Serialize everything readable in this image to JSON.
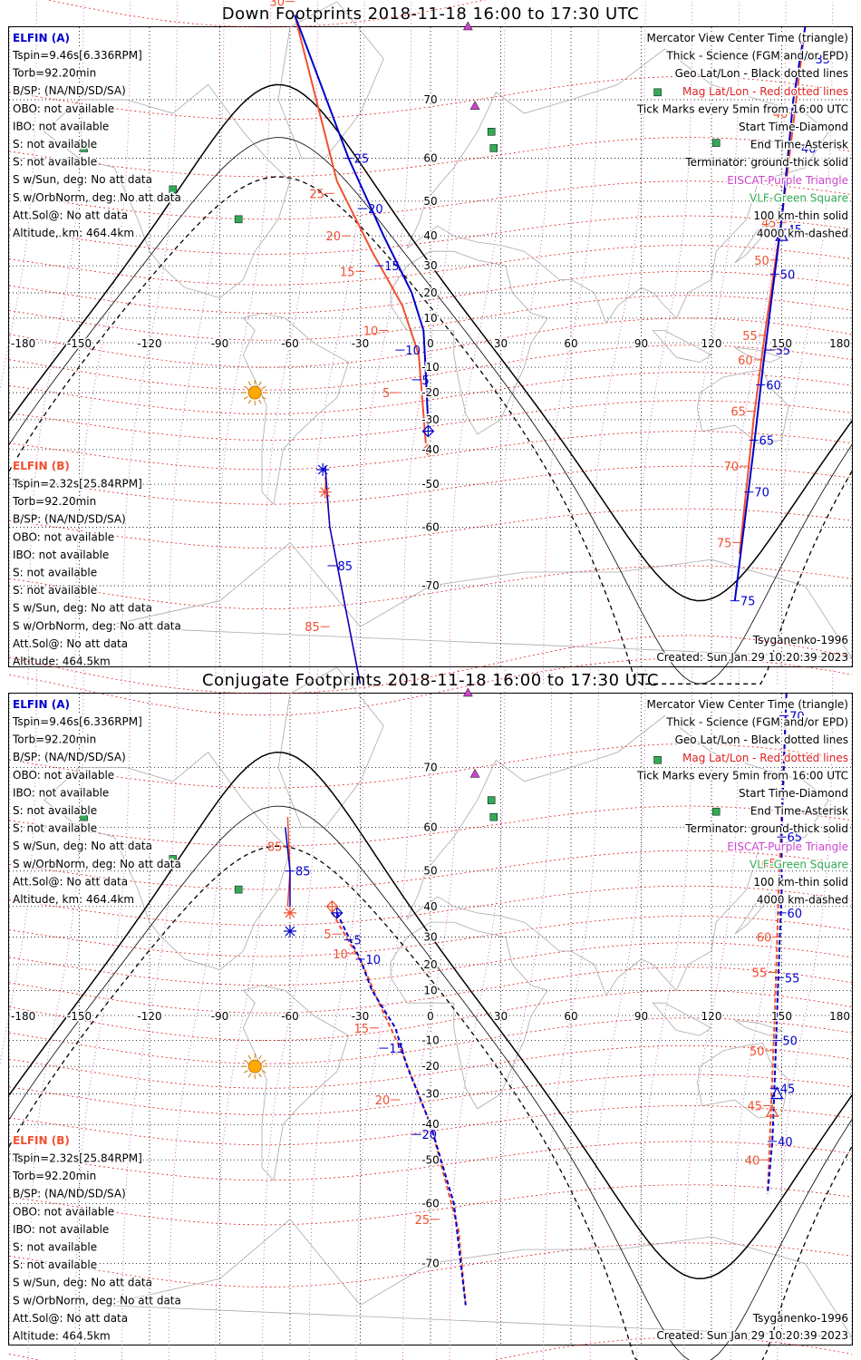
{
  "panels": [
    {
      "id": "down",
      "title": "Down Footprints 2018-11-18 16:00 to 17:30 UTC",
      "info_a": {
        "header": "ELFIN (A)",
        "lines": [
          "Tspin=9.46s[6.336RPM]",
          "Torb=92.20min",
          "B/SP: (NA/ND/SD/SA)",
          "OBO: not available",
          "IBO: not available",
          "S: not available",
          "S: not available",
          "S w/Sun, deg: No att data",
          "S w/OrbNorm, deg: No att data",
          "Att.Sol@: No att data",
          "Altitude, km: 464.4km"
        ]
      },
      "info_b": {
        "header": "ELFIN (B)",
        "lines": [
          "Tspin=2.32s[25.84RPM]",
          "Torb=92.20min",
          "B/SP: (NA/ND/SD/SA)",
          "OBO: not available",
          "IBO: not available",
          "S: not available",
          "S: not available",
          "S w/Sun, deg: No att data",
          "S w/OrbNorm, deg: No att data",
          "Att.Sol@: No att data",
          "Altitude: 464.5km"
        ]
      },
      "track_a_blue": {
        "points": [
          [
            -58,
            79
          ],
          [
            -35,
            60
          ],
          [
            -20,
            40
          ],
          [
            -8,
            20
          ],
          [
            -3,
            5
          ],
          [
            -2,
            -12
          ],
          [
            -1,
            -32
          ]
        ],
        "ticks": [
          {
            "lon": -35,
            "lat": 60,
            "label": "25"
          },
          {
            "lon": -29,
            "lat": 48,
            "label": "20"
          },
          {
            "lon": -22,
            "lat": 30,
            "label": "15"
          },
          {
            "lon": -13,
            "lat": -3,
            "label": "10"
          },
          {
            "lon": -6,
            "lat": -15,
            "label": "5"
          }
        ]
      },
      "track_a_red": {
        "points": [
          [
            -58,
            79
          ],
          [
            -40,
            55
          ],
          [
            -25,
            35
          ],
          [
            -12,
            15
          ],
          [
            -5,
            -5
          ],
          [
            -2,
            -38
          ]
        ],
        "ticks": [
          {
            "lon": -60,
            "lat": 80,
            "label": "30"
          },
          {
            "lon": -43,
            "lat": 52,
            "label": "25"
          },
          {
            "lon": -36,
            "lat": 40,
            "label": "20"
          },
          {
            "lon": -30,
            "lat": 28,
            "label": "15"
          },
          {
            "lon": -20,
            "lat": 5,
            "label": "10"
          },
          {
            "lon": -15,
            "lat": -20,
            "label": "5"
          }
        ]
      },
      "track_b_blue": {
        "points": [
          [
            -45,
            -45
          ],
          [
            -43,
            -60
          ],
          [
            -30,
            -80
          ]
        ],
        "ticks": [
          {
            "lon": -42,
            "lat": -67,
            "label": "85"
          }
        ]
      },
      "track_b_red": {
        "points": [
          [
            -45,
            -48
          ],
          [
            -43,
            -60
          ],
          [
            -30,
            -80
          ]
        ],
        "ticks": [
          {
            "lon": -45,
            "lat": -75,
            "label": "85"
          }
        ]
      },
      "track_a2_blue": {
        "points": [
          [
            160,
            78
          ],
          [
            155,
            70
          ],
          [
            150,
            45
          ],
          [
            146,
            20
          ],
          [
            142,
            -10
          ],
          [
            138,
            -40
          ],
          [
            130,
            -72
          ]
        ],
        "ticks": [
          {
            "lon": 162,
            "lat": 75,
            "label": "35"
          },
          {
            "lon": 156,
            "lat": 62,
            "label": "40"
          },
          {
            "lon": 150,
            "lat": 42,
            "label": "45"
          },
          {
            "lon": 147,
            "lat": 27,
            "label": "50"
          },
          {
            "lon": 145,
            "lat": -3,
            "label": "55"
          },
          {
            "lon": 141,
            "lat": -17,
            "label": "60"
          },
          {
            "lon": 138,
            "lat": -37,
            "label": "65"
          },
          {
            "lon": 136,
            "lat": -52,
            "label": "70"
          },
          {
            "lon": 130,
            "lat": -72,
            "label": "75"
          }
        ]
      },
      "track_a2_red": {
        "points": [
          [
            160,
            78
          ],
          [
            150,
            45
          ],
          [
            143,
            5
          ],
          [
            138,
            -30
          ],
          [
            132,
            -65
          ]
        ],
        "ticks": [
          {
            "lon": 155,
            "lat": 68,
            "label": "40"
          },
          {
            "lon": 150,
            "lat": 44,
            "label": "45"
          },
          {
            "lon": 147,
            "lat": 32,
            "label": "50"
          },
          {
            "lon": 142,
            "lat": 3,
            "label": "55"
          },
          {
            "lon": 140,
            "lat": -7,
            "label": "60"
          },
          {
            "lon": 137,
            "lat": -27,
            "label": "65"
          },
          {
            "lon": 134,
            "lat": -45,
            "label": "70"
          },
          {
            "lon": 131,
            "lat": -63,
            "label": "75"
          }
        ]
      },
      "start_a": {
        "lon": -1,
        "lat": -34
      },
      "start_a_red": {
        "lon": -1,
        "lat": -40
      },
      "end_b": {
        "lon": -46,
        "lat": -46
      },
      "end_b_red": {
        "lon": -45,
        "lat": -52
      },
      "center_triangle_a": {
        "lon": 150,
        "lat": 40
      },
      "sun": {
        "lon": -75,
        "lat": -20
      },
      "footer_left": "",
      "footer_right_model": "Tsyganenko-1996",
      "footer_right_created": "Created: Sun Jan 29 10:20:39 2023"
    },
    {
      "id": "conjugate",
      "title": "Conjugate Footprints 2018-11-18 16:00 to 17:30 UTC",
      "info_a": {
        "header": "ELFIN (A)",
        "lines": [
          "Tspin=9.46s[6.336RPM]",
          "Torb=92.20min",
          "B/SP: (NA/ND/SD/SA)",
          "OBO: not available",
          "IBO: not available",
          "S: not available",
          "S: not available",
          "S w/Sun, deg: No att data",
          "S w/OrbNorm, deg: No att data",
          "Att.Sol@: No att data",
          "Altitude, km: 464.4km"
        ]
      },
      "info_b": {
        "header": "ELFIN (B)",
        "lines": [
          "Tspin=2.32s[25.84RPM]",
          "Torb=92.20min",
          "B/SP: (NA/ND/SD/SA)",
          "OBO: not available",
          "IBO: not available",
          "S: not available",
          "S: not available",
          "S w/Sun, deg: No att data",
          "S w/OrbNorm, deg: No att data",
          "Att.Sol@: No att data",
          "Altitude: 464.5km"
        ]
      },
      "track_a_blue": {
        "points": [
          [
            -40,
            38
          ],
          [
            -35,
            30
          ],
          [
            -30,
            22
          ],
          [
            -25,
            10
          ],
          [
            -15,
            -5
          ],
          [
            -10,
            -20
          ],
          [
            0,
            -40
          ],
          [
            10,
            -60
          ],
          [
            15,
            -75
          ]
        ],
        "ticks": [
          {
            "lon": -35,
            "lat": 29,
            "label": "5"
          },
          {
            "lon": -30,
            "lat": 22,
            "label": "10"
          },
          {
            "lon": -20,
            "lat": -13,
            "label": "15"
          },
          {
            "lon": -6,
            "lat": -43,
            "label": "20"
          }
        ]
      },
      "track_a_red": {
        "points": [
          [
            -42,
            38
          ],
          [
            -36,
            30
          ],
          [
            -29,
            20
          ],
          [
            -22,
            5
          ],
          [
            -12,
            -15
          ],
          [
            0,
            -40
          ],
          [
            12,
            -65
          ],
          [
            15,
            -75
          ]
        ],
        "ticks": [
          {
            "lon": -40,
            "lat": 31,
            "label": "5"
          },
          {
            "lon": -33,
            "lat": 24,
            "label": "10"
          },
          {
            "lon": -24,
            "lat": -5,
            "label": "15"
          },
          {
            "lon": -15,
            "lat": -32,
            "label": "20"
          },
          {
            "lon": 2,
            "lat": -63,
            "label": "25"
          }
        ]
      },
      "track_b_blue": {
        "points": [
          [
            -62,
            60
          ],
          [
            -60,
            50
          ],
          [
            -60,
            40
          ]
        ],
        "ticks": [
          {
            "lon": -60,
            "lat": 50,
            "label": "85"
          }
        ]
      },
      "track_b_red": {
        "points": [
          [
            -61,
            62
          ],
          [
            -60,
            50
          ],
          [
            -61,
            40
          ]
        ],
        "ticks": [
          {
            "lon": -61,
            "lat": 56,
            "label": "85"
          }
        ]
      },
      "track_a2_blue": {
        "points": [
          [
            152,
            78
          ],
          [
            150,
            60
          ],
          [
            150,
            45
          ],
          [
            149,
            25
          ],
          [
            148,
            0
          ],
          [
            147,
            -25
          ],
          [
            146,
            -45
          ],
          [
            144,
            -58
          ]
        ],
        "ticks": [
          {
            "lon": 151,
            "lat": 76,
            "label": "70"
          },
          {
            "lon": 150,
            "lat": 58,
            "label": "65"
          },
          {
            "lon": 150,
            "lat": 38,
            "label": "60"
          },
          {
            "lon": 149,
            "lat": 15,
            "label": "55"
          },
          {
            "lon": 148,
            "lat": -10,
            "label": "50"
          },
          {
            "lon": 147,
            "lat": -28,
            "label": "45"
          },
          {
            "lon": 146,
            "lat": -45,
            "label": "40"
          }
        ]
      },
      "track_a2_red": {
        "points": [
          [
            152,
            78
          ],
          [
            149,
            50
          ],
          [
            147,
            0
          ],
          [
            144,
            -58
          ]
        ],
        "ticks": [
          {
            "lon": 150,
            "lat": 52,
            "label": "65"
          },
          {
            "lon": 148,
            "lat": 30,
            "label": "60"
          },
          {
            "lon": 146,
            "lat": 17,
            "label": "55"
          },
          {
            "lon": 145,
            "lat": -14,
            "label": "50"
          },
          {
            "lon": 144,
            "lat": -34,
            "label": "45"
          },
          {
            "lon": 143,
            "lat": -50,
            "label": "40"
          }
        ]
      },
      "start_a": {
        "lon": -40,
        "lat": 38
      },
      "start_a_red": {
        "lon": -42,
        "lat": 40
      },
      "end_b": {
        "lon": -60,
        "lat": 32
      },
      "end_b_red": {
        "lon": -60,
        "lat": 38
      },
      "center_triangle_a": {
        "lon": 148,
        "lat": -30
      },
      "center_triangle_a_red": {
        "lon": 146,
        "lat": -36
      },
      "sun": {
        "lon": -75,
        "lat": -20
      },
      "footer_left": "",
      "footer_right_model": "Tsyganenko-1996",
      "footer_right_created": "Created: Sun Jan 29 10:20:39 2023"
    }
  ],
  "legend": {
    "line1": "Mercator View Center Time (triangle)",
    "line2": "Thick - Science (FGM and/or EPD)",
    "line3": "Geo Lat/Lon - Black dotted lines",
    "line4": "Mag Lat/Lon - Red dotted lines",
    "line5": "Tick Marks every 5min from 16:00 UTC",
    "line6": "Start Time-Diamond",
    "line7": "End Time-Asterisk",
    "line8": "Terminator: ground-thick solid",
    "line9": "EISCAT-Purple Triangle",
    "line10": "VLF-Green Square",
    "line11": "100 km-thin solid",
    "line12": "4000 km-dashed"
  },
  "lon_ticks": [
    "-180",
    "-150",
    "-120",
    "-90",
    "-60",
    "-30",
    "0",
    "30",
    "60",
    "90",
    "120",
    "150",
    "180"
  ],
  "lat_ticks": [
    "70",
    "60",
    "50",
    "40",
    "30",
    "20",
    "10",
    "0",
    "-10",
    "-20",
    "-30",
    "-40",
    "-50",
    "-60",
    "-70"
  ],
  "colors": {
    "blue": "#0000cc",
    "red": "#f05030",
    "eiscat": "#cc44cc",
    "vlf": "#33aa55",
    "magline": "#dd2222",
    "sun": "#ffaa00",
    "coast": "#aaaaaa"
  }
}
